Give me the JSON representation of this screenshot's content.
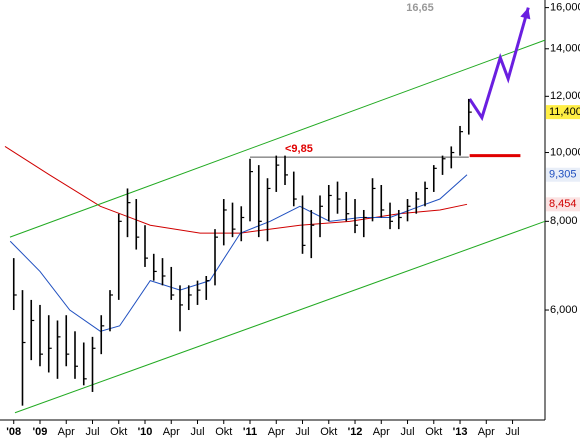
{
  "chart_data": {
    "type": "ohlc",
    "log_scale": true,
    "xlim": [
      -4.57,
      57.71
    ],
    "ylim": [
      4.2,
      16.4
    ],
    "xticks": [
      {
        "value": -3,
        "label": "'08"
      },
      {
        "value": 0,
        "label": "'09"
      },
      {
        "value": 3,
        "label": "Apr"
      },
      {
        "value": 6,
        "label": "Jul"
      },
      {
        "value": 9,
        "label": "Okt"
      },
      {
        "value": 12,
        "label": "'10"
      },
      {
        "value": 15,
        "label": "Apr"
      },
      {
        "value": 18,
        "label": "Jul"
      },
      {
        "value": 21,
        "label": "Okt"
      },
      {
        "value": 24,
        "label": "'11"
      },
      {
        "value": 27,
        "label": "Apr"
      },
      {
        "value": 30,
        "label": "Jul"
      },
      {
        "value": 33,
        "label": "Okt"
      },
      {
        "value": 36,
        "label": "'12"
      },
      {
        "value": 39,
        "label": "Apr"
      },
      {
        "value": 42,
        "label": "Jul"
      },
      {
        "value": 45,
        "label": "Okt"
      },
      {
        "value": 48,
        "label": "'13"
      },
      {
        "value": 51,
        "label": "Apr"
      },
      {
        "value": 54,
        "label": "Jul"
      }
    ],
    "yticks": [
      {
        "value": 6,
        "label": "6,000"
      },
      {
        "value": 8,
        "label": "8,000"
      },
      {
        "value": 10,
        "label": "10,000"
      },
      {
        "value": 12,
        "label": "12,000"
      },
      {
        "value": 14,
        "label": "14,000"
      },
      {
        "value": 16,
        "label": "16,000"
      }
    ],
    "color": "#000000",
    "x": [
      -3,
      -2,
      -1,
      0,
      1,
      2,
      3,
      4,
      5,
      6,
      7,
      8,
      9,
      10,
      11,
      12,
      13,
      14,
      15,
      16,
      17,
      18,
      19,
      20,
      21,
      22,
      23,
      24,
      25,
      26,
      27,
      28,
      29,
      30,
      31,
      32,
      33,
      34,
      35,
      36,
      37,
      38,
      39,
      40,
      41,
      42,
      43,
      44,
      45,
      46,
      47,
      48,
      49
    ],
    "high": [
      7.1,
      6.4,
      6.2,
      6.1,
      5.9,
      5.8,
      5.9,
      5.6,
      5.4,
      5.5,
      5.9,
      6.4,
      8.2,
      8.9,
      8.6,
      7.9,
      7.2,
      7.1,
      6.9,
      6.5,
      6.5,
      6.6,
      6.7,
      7.8,
      8.6,
      8.5,
      8.4,
      9.8,
      9.6,
      9.2,
      9.9,
      9.9,
      9.4,
      8.7,
      8.3,
      8.7,
      9.0,
      9.1,
      8.8,
      8.6,
      8.3,
      9.2,
      9.0,
      8.5,
      8.3,
      8.6,
      8.8,
      9.1,
      9.6,
      9.9,
      10.2,
      10.9,
      11.9
    ],
    "low": [
      6.0,
      4.4,
      5.1,
      5.0,
      4.9,
      4.8,
      5.0,
      4.8,
      4.7,
      4.6,
      5.2,
      5.6,
      6.2,
      7.6,
      7.3,
      6.9,
      6.6,
      6.5,
      6.2,
      5.6,
      6.0,
      6.1,
      6.2,
      6.5,
      7.4,
      7.6,
      7.5,
      8.0,
      7.6,
      7.5,
      8.8,
      9.0,
      8.4,
      7.2,
      7.1,
      7.6,
      8.0,
      8.2,
      8.0,
      7.7,
      7.6,
      8.0,
      8.1,
      7.8,
      7.8,
      8.0,
      8.2,
      8.4,
      8.8,
      9.3,
      9.5,
      9.9,
      10.6
    ],
    "close": [
      6.3,
      5.4,
      5.8,
      5.2,
      5.3,
      5.5,
      5.2,
      5.0,
      4.8,
      5.3,
      5.7,
      6.3,
      8.0,
      8.5,
      7.6,
      7.1,
      6.8,
      6.7,
      6.3,
      6.1,
      6.3,
      6.4,
      6.6,
      7.6,
      8.3,
      7.8,
      8.1,
      9.4,
      8.0,
      8.9,
      9.6,
      9.3,
      8.6,
      7.4,
      7.9,
      8.4,
      8.7,
      8.6,
      8.2,
      7.9,
      8.1,
      8.9,
      8.3,
      8.0,
      8.1,
      8.4,
      8.6,
      8.9,
      9.5,
      9.8,
      10.0,
      10.7,
      11.4
    ],
    "lines": [
      {
        "name": "MA long",
        "color": "#d00000",
        "x": [
          -4,
          1.1,
          6.9,
          12.6,
          18.3,
          22.9,
          29.7,
          35.4,
          41,
          45.7,
          48.8
        ],
        "values": [
          10.2,
          9.3,
          8.4,
          7.9,
          7.7,
          7.7,
          7.9,
          8.0,
          8.2,
          8.3,
          8.454
        ]
      },
      {
        "name": "MA short",
        "color": "#2050c0",
        "x": [
          -3.4,
          0,
          3.4,
          6.9,
          9.1,
          12.6,
          16,
          19.4,
          22.9,
          26.3,
          29.7,
          33.1,
          36.6,
          40,
          43.4,
          45.7,
          48.8
        ],
        "values": [
          7.5,
          6.8,
          6.0,
          5.6,
          5.7,
          6.6,
          6.4,
          6.6,
          7.7,
          8.0,
          8.4,
          8.0,
          8.1,
          8.1,
          8.4,
          8.6,
          9.305
        ]
      },
      {
        "name": "channel top",
        "color": "#22aa22",
        "x": [
          -3.43,
          57.71
        ],
        "values": [
          7.6,
          14.4
        ]
      },
      {
        "name": "channel bottom",
        "color": "#22aa22",
        "x": [
          -2.86,
          57.71
        ],
        "values": [
          4.3,
          8.0
        ]
      },
      {
        "name": "resistance",
        "color": "#555555",
        "x": [
          24,
          49
        ],
        "values": [
          9.85,
          9.85
        ]
      },
      {
        "name": "target zone",
        "color": "#e00000",
        "x": [
          49.1,
          54.9
        ],
        "values": [
          9.9,
          9.9
        ]
      },
      {
        "name": "projection",
        "color": "#6a1fe0",
        "x": [
          49.1,
          50.5,
          52.6,
          53.5,
          55.8
        ],
        "values": [
          11.9,
          11.2,
          13.6,
          12.7,
          16.0
        ]
      }
    ],
    "price_labels": [
      {
        "value": 11.4,
        "label": "11,400",
        "color": "#000000",
        "background": "#ffee44"
      },
      {
        "value": 9.305,
        "label": "9,305",
        "color": "#2050c0",
        "background": "#e8eef8"
      },
      {
        "value": 8.454,
        "label": "8,454",
        "color": "#d00000",
        "background": "#fbe3e3"
      }
    ],
    "resistance_label": {
      "value": 9.85,
      "label": "<9,85"
    },
    "target_label": "16,65"
  }
}
